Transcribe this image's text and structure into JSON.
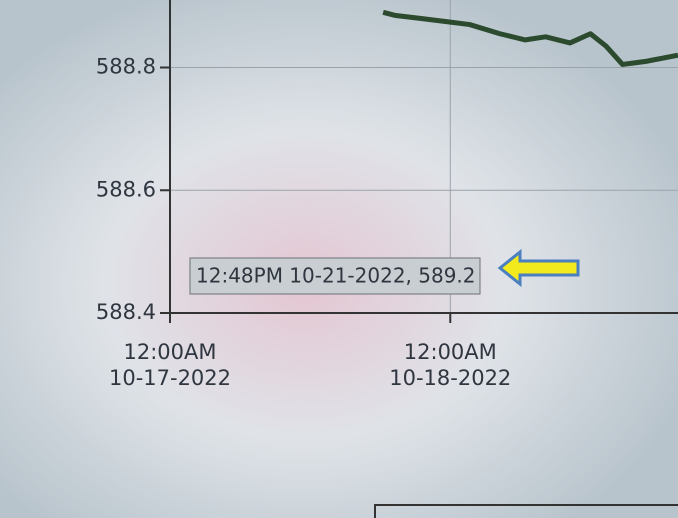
{
  "chart_data": {
    "type": "line",
    "annotation": "12:48PM 10-21-2022, 589.2",
    "x": [
      "2022-10-17 18:15",
      "2022-10-17 19:15",
      "2022-10-17 21:25",
      "2022-10-17 23:35",
      "2022-10-18 01:40",
      "2022-10-18 04:15",
      "2022-10-18 06:25",
      "2022-10-18 08:10",
      "2022-10-18 10:15",
      "2022-10-18 12:00",
      "2022-10-18 13:20",
      "2022-10-18 14:45",
      "2022-10-18 16:45",
      "2022-10-18 19:30"
    ],
    "series": [
      {
        "color": "#2b4a2e",
        "values": [
          588.89,
          588.885,
          588.88,
          588.875,
          588.87,
          588.855,
          588.845,
          588.85,
          588.84,
          588.855,
          588.835,
          588.805,
          588.81,
          588.82
        ]
      }
    ],
    "xlim": [
      "2022-10-17 00:00",
      "2022-10-18 19:30"
    ],
    "xticks": [
      {
        "value": "2022-10-17 00:00",
        "label": [
          "12:00AM",
          "10-17-2022"
        ]
      },
      {
        "value": "2022-10-18 00:00",
        "label": [
          "12:00AM",
          "10-18-2022"
        ]
      }
    ],
    "ylim": [
      588.4,
      588.91
    ],
    "yticks": [
      588.4,
      588.6,
      588.8
    ],
    "grid": true
  }
}
